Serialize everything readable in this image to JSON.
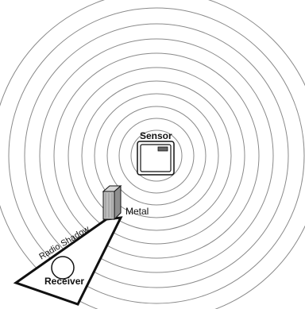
{
  "labels": {
    "sensor": "Sensor",
    "metal": "Metal",
    "radio_shadow": "Radio Shadow",
    "receiver": "Receiver"
  },
  "colors": {
    "wave_stroke": "#8a8a8a",
    "metal_front": "#bdbdbd",
    "metal_side": "#8f8f8f",
    "metal_top": "#d6d6d6",
    "outline": "#111111"
  },
  "icons": {
    "sensor": "sensor-device-icon",
    "metal": "metal-block-icon",
    "receiver": "receiver-circle-icon"
  }
}
